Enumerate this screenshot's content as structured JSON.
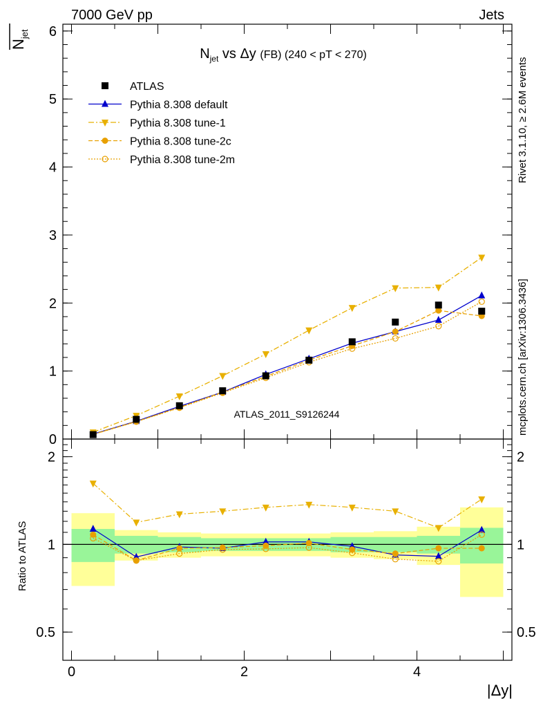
{
  "header": {
    "left": "7000 GeV pp",
    "right": "Jets"
  },
  "side_labels": {
    "rivet": "Rivet 3.1.10, ≥ 2.6M events",
    "mcplots": "mcplots.cern.ch [arXiv:1306.3436]"
  },
  "watermark": "ATLAS_2011_S9126244",
  "chart_data": {
    "type": "line",
    "title": {
      "main": "N",
      "sub": "jet",
      "mid": " vs Δy ",
      "small": "(FB)",
      "range": " (240 < pT < 270)"
    },
    "xlabel": "|Δy|",
    "ylabel": {
      "main": "N",
      "sub": "jet"
    },
    "ratio_ylabel": "Ratio to ATLAS",
    "xlim": [
      -0.1,
      5.1
    ],
    "ylim": [
      0,
      6.1
    ],
    "ratio_ylim": [
      0.4,
      2.3
    ],
    "ratio_log": true,
    "x_ticks": [
      0,
      2,
      4
    ],
    "y_ticks": [
      0,
      1,
      2,
      3,
      4,
      5,
      6
    ],
    "ratio_ticks": [
      0.5,
      1,
      2
    ],
    "legend_position": "top-left",
    "x": [
      0.25,
      0.75,
      1.25,
      1.75,
      2.25,
      2.75,
      3.25,
      3.75,
      4.25,
      4.75
    ],
    "bins": [
      [
        0,
        0.5
      ],
      [
        0.5,
        1.0
      ],
      [
        1.0,
        1.5
      ],
      [
        1.5,
        2.0
      ],
      [
        2.0,
        2.5
      ],
      [
        2.5,
        3.0
      ],
      [
        3.0,
        3.5
      ],
      [
        3.5,
        4.0
      ],
      [
        4.0,
        4.5
      ],
      [
        4.5,
        5.0
      ]
    ],
    "data": {
      "name": "ATLAS",
      "color": "#000000",
      "values": [
        0.065,
        0.29,
        0.49,
        0.71,
        0.93,
        1.16,
        1.43,
        1.72,
        1.97,
        1.88
      ],
      "band_inner": [
        0.13,
        0.07,
        0.06,
        0.05,
        0.05,
        0.05,
        0.06,
        0.06,
        0.07,
        0.14
      ],
      "band_outer": [
        0.28,
        0.12,
        0.1,
        0.09,
        0.09,
        0.09,
        0.1,
        0.11,
        0.15,
        0.34
      ]
    },
    "series": [
      {
        "name": "Pythia 8.308 default",
        "color": "#0000cc",
        "dash": "",
        "marker": "triangle-up",
        "values": [
          0.074,
          0.262,
          0.48,
          0.69,
          0.95,
          1.18,
          1.41,
          1.58,
          1.75,
          2.11
        ],
        "ratio": [
          1.13,
          0.905,
          0.98,
          0.97,
          1.02,
          1.02,
          0.985,
          0.92,
          0.91,
          1.12
        ]
      },
      {
        "name": "Pythia 8.308 tune-1",
        "color": "#e8b000",
        "dash": "8,3,2,3",
        "marker": "triangle-down",
        "values": [
          0.1,
          0.345,
          0.63,
          0.93,
          1.25,
          1.6,
          1.93,
          2.22,
          2.23,
          2.67
        ],
        "ratio": [
          1.62,
          1.19,
          1.27,
          1.3,
          1.34,
          1.37,
          1.34,
          1.3,
          1.14,
          1.43
        ]
      },
      {
        "name": "Pythia 8.308 tune-2c",
        "color": "#e8a000",
        "dash": "6,3",
        "marker": "circle-filled",
        "values": [
          0.07,
          0.257,
          0.465,
          0.69,
          0.92,
          1.16,
          1.37,
          1.58,
          1.89,
          1.81
        ],
        "ratio": [
          1.08,
          0.88,
          0.97,
          0.975,
          0.99,
          1.01,
          0.96,
          0.93,
          0.97,
          0.97
        ]
      },
      {
        "name": "Pythia 8.308 tune-2m",
        "color": "#e8a000",
        "dash": "2,2",
        "marker": "circle-open",
        "values": [
          0.068,
          0.255,
          0.46,
          0.68,
          0.9,
          1.13,
          1.33,
          1.48,
          1.66,
          2.02
        ],
        "ratio": [
          1.05,
          0.88,
          0.93,
          0.96,
          0.965,
          0.975,
          0.935,
          0.89,
          0.875,
          1.08
        ]
      }
    ]
  }
}
